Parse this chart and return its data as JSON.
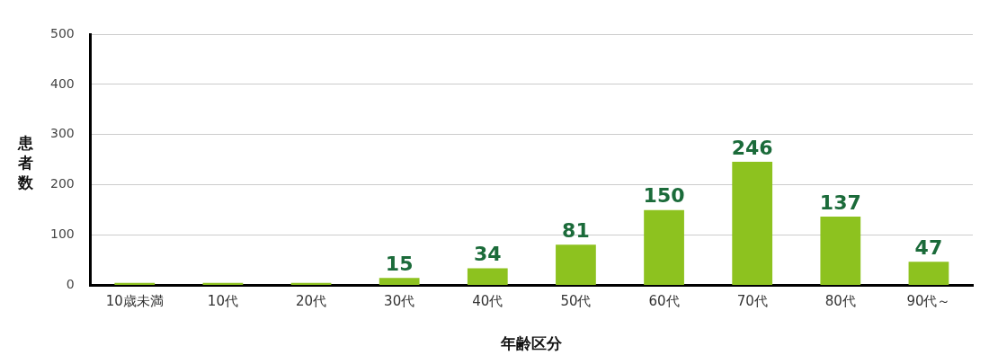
{
  "chart_data": {
    "type": "bar",
    "xlabel": "年齢区分",
    "ylabel": "患者数",
    "categories": [
      "10歳未満",
      "10代",
      "20代",
      "30代",
      "40代",
      "50代",
      "60代",
      "70代",
      "80代",
      "90代～"
    ],
    "values": [
      5,
      5,
      5,
      15,
      34,
      81,
      150,
      246,
      137,
      47
    ],
    "value_labels": [
      null,
      null,
      null,
      "15",
      "34",
      "81",
      "150",
      "246",
      "137",
      "47"
    ],
    "color": "#8dc21f",
    "ylim": [
      0,
      500
    ],
    "yticks": [
      0,
      100,
      200,
      300,
      400,
      500
    ],
    "grid": "y",
    "legend": false
  }
}
